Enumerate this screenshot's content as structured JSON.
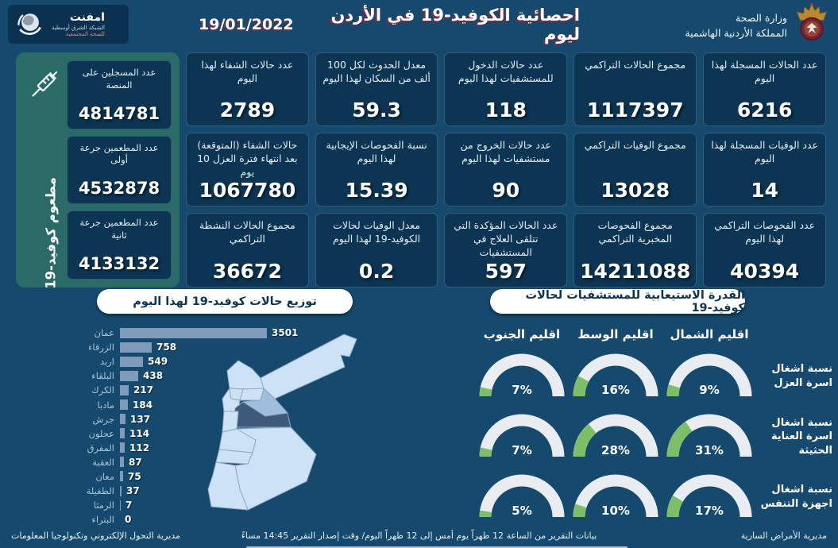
{
  "header": {
    "title": "احصائية الكوفيد-19 في الأردن ليوم",
    "date": "19/01/2022",
    "ministry_line1": "وزارة الصحة",
    "ministry_line2": "المملكة الأردنية الهاشمية",
    "network_name": "امفنت",
    "network_line1": "الشبكة الشرق أوسطية",
    "network_line2": "للصحة المجتمعية"
  },
  "vaccine_panel": {
    "vertical_label": "مطعوم كوفيد-19",
    "cards": [
      {
        "label": "عدد المسجلين على المنصة",
        "value": "4814781"
      },
      {
        "label": "عدد المطعمين جرعة أولى",
        "value": "4532878"
      },
      {
        "label": "عدد المطعمين جرعة ثانية",
        "value": "4133132"
      }
    ]
  },
  "stat_cards": [
    {
      "label": "عدد الحالات المسجلة لهذا اليوم",
      "value": "6216"
    },
    {
      "label": "مجموع الحالات التراكمي",
      "value": "1117397"
    },
    {
      "label": "عدد حالات الدخول للمستشفيات لهذا اليوم",
      "value": "118"
    },
    {
      "label": "معدل الحدوث لكل 100 ألف من السكان لهذا اليوم",
      "value": "59.3"
    },
    {
      "label": "عدد حالات الشفاء لهذا اليوم",
      "value": "2789"
    },
    {
      "label": "عدد الوفيات المسجلة لهذا اليوم",
      "value": "14"
    },
    {
      "label": "مجموع الوفيات التراكمي",
      "value": "13028"
    },
    {
      "label": "عدد حالات الخروج من مستشفيات لهذا اليوم",
      "value": "90"
    },
    {
      "label": "نسبة الفحوصات الإيجابية لهذا اليوم",
      "value": "15.39"
    },
    {
      "label": "حالات الشفاء (المتوقعة) بعد انتهاء فترة العزل 10 يوم",
      "value": "1067780"
    },
    {
      "label": "عدد الفحوصات التراكمي لهذا اليوم",
      "value": "40394"
    },
    {
      "label": "مجموع الفحوصات المخبرية التراكمي",
      "value": "14211088"
    },
    {
      "label": "عدد الحالات المؤكدة التي تتلقى العلاج في المستشفيات",
      "value": "597"
    },
    {
      "label": "معدل الوفيات لحالات الكوفيد-19 لهذا اليوم",
      "value": "0.2"
    },
    {
      "label": "مجموع الحالات النشطة التراكمي",
      "value": "36672"
    }
  ],
  "chart_data": [
    {
      "type": "bar",
      "title": "توزيع حالات كوفيد-19 لهذا اليوم",
      "orientation": "horizontal",
      "categories": [
        "عمان",
        "الزرقاء",
        "اربد",
        "البلقاء",
        "الكرك",
        "مادبا",
        "جرش",
        "عجلون",
        "المفرق",
        "العقبة",
        "معان",
        "الطفيلة",
        "الرمثا",
        "البتراء"
      ],
      "values": [
        3501,
        758,
        549,
        438,
        217,
        184,
        137,
        114,
        112,
        87,
        75,
        37,
        7,
        0
      ],
      "xlabel": "",
      "ylabel": "",
      "xlim": [
        0,
        3501
      ],
      "bar_color": "#7e9cba",
      "map_highlight": {
        "dark_region": "عمان",
        "medium_region": "الزرقاء"
      }
    },
    {
      "type": "gauge",
      "title": "القدرة الاستيعابية للمستشفيات لحالات كوفيد-19",
      "columns": [
        "اقليم الجنوب",
        "اقليم الوسط",
        "اقليم الشمال"
      ],
      "rows": [
        "نسبة اشغال اسرة العزل",
        "نسبة اشغال اسرة العناية الحثيثة",
        "نسبة اشغال اجهزة التنفس"
      ],
      "values_pct": [
        [
          7,
          16,
          9
        ],
        [
          7,
          28,
          31
        ],
        [
          5,
          10,
          17
        ]
      ],
      "range": [
        0,
        100
      ],
      "fill_color": "#7fbe68",
      "track_color": "#e9edf1"
    }
  ],
  "footer": {
    "right": "مديرية الأمراض السارية",
    "center": "بيانات التقرير من الساعة 12 ظهراً يوم أمس إلى 12 ظهراً اليوم/ وقت إصدار التقرير 14:45 مساءً",
    "left": "مديرية التحول الإلكتروني وتكنولوجيا المعلومات"
  },
  "colors": {
    "page_bg": "#154a6e",
    "card_bg": "#0c3553",
    "vaccine_panel_bg": "#2a6b67",
    "bar": "#7e9cba",
    "gauge_green": "#7fbe68",
    "gauge_track": "#e9edf1",
    "map_light": "#cde2f4",
    "map_medium": "#9dbedc",
    "map_dark": "#3d5a7a"
  }
}
